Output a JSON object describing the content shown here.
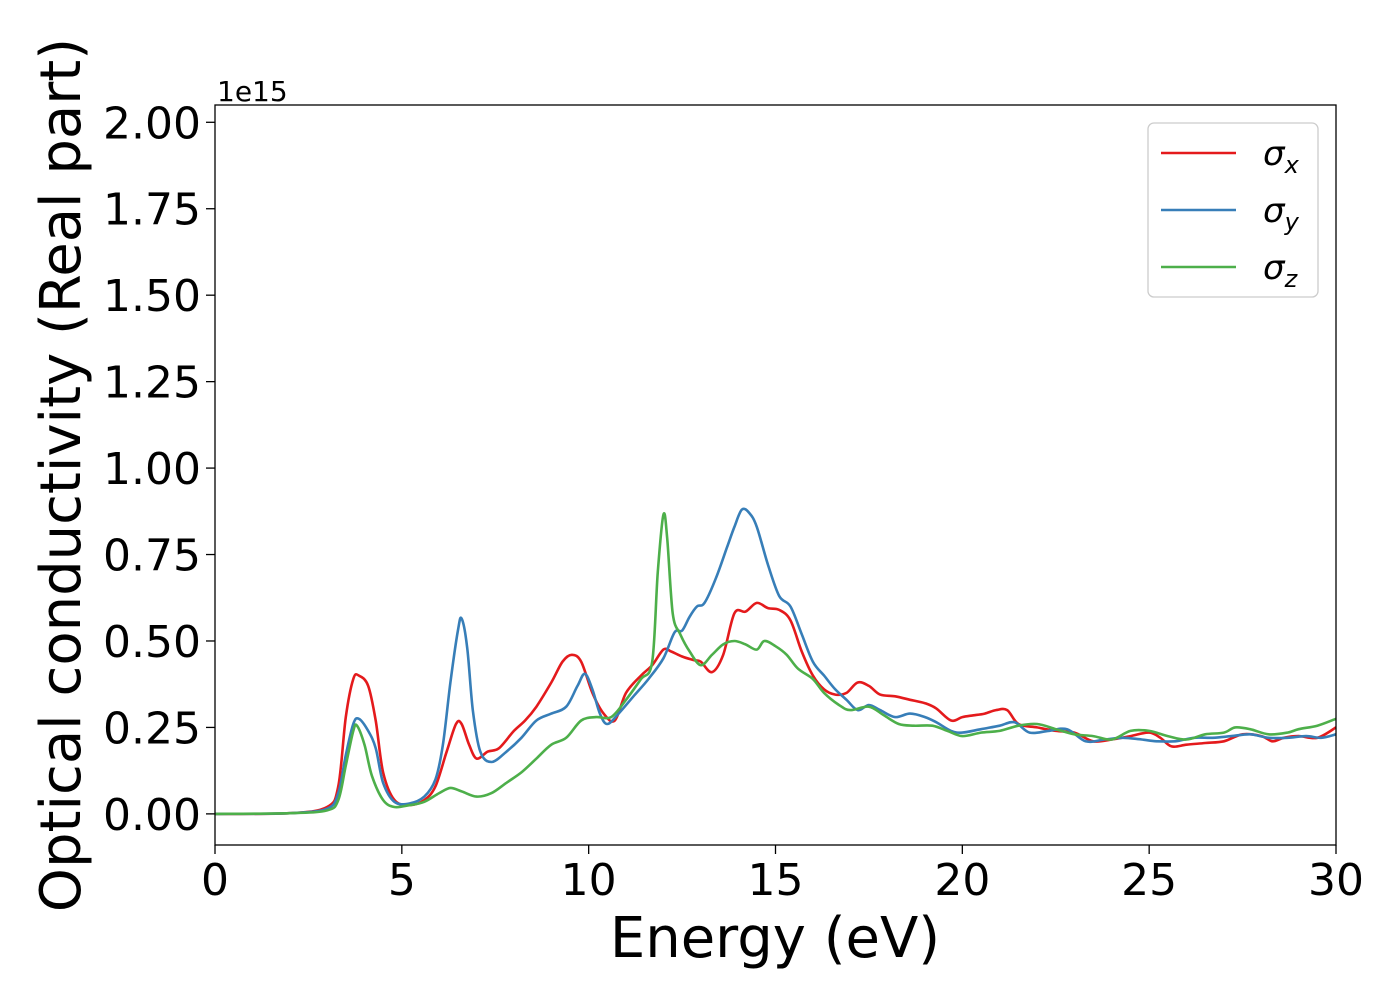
{
  "chart_data": {
    "type": "line",
    "xlabel": "Energy (eV)",
    "ylabel": "Optical conductivity (Real part)",
    "y_offset_label": "1e15",
    "xlim": [
      0,
      30
    ],
    "ylim": [
      -0.09,
      2.05
    ],
    "x_ticks": [
      0,
      5,
      10,
      15,
      20,
      25,
      30
    ],
    "x_tick_labels": [
      "0",
      "5",
      "10",
      "15",
      "20",
      "25",
      "30"
    ],
    "y_ticks": [
      0.0,
      0.25,
      0.5,
      0.75,
      1.0,
      1.25,
      1.5,
      1.75,
      2.0
    ],
    "y_tick_labels": [
      "0.00",
      "0.25",
      "0.50",
      "0.75",
      "1.00",
      "1.25",
      "1.50",
      "1.75",
      "2.00"
    ],
    "grid": false,
    "legend": {
      "position": "top-right",
      "entries": [
        {
          "label": "σx",
          "symbol": "σ",
          "subscript": "x",
          "color": "#e41a1c"
        },
        {
          "label": "σy",
          "symbol": "σ",
          "subscript": "y",
          "color": "#377eb8"
        },
        {
          "label": "σz",
          "symbol": "σ",
          "subscript": "z",
          "color": "#4daf4a"
        }
      ]
    },
    "series": [
      {
        "name": "σx",
        "color": "#e41a1c",
        "points": [
          [
            0,
            0.0
          ],
          [
            2,
            0.002
          ],
          [
            3,
            0.02
          ],
          [
            3.3,
            0.08
          ],
          [
            3.5,
            0.28
          ],
          [
            3.7,
            0.39
          ],
          [
            3.85,
            0.4
          ],
          [
            4.1,
            0.37
          ],
          [
            4.3,
            0.27
          ],
          [
            4.5,
            0.12
          ],
          [
            4.8,
            0.04
          ],
          [
            5.2,
            0.025
          ],
          [
            5.6,
            0.04
          ],
          [
            5.9,
            0.08
          ],
          [
            6.2,
            0.18
          ],
          [
            6.45,
            0.26
          ],
          [
            6.6,
            0.26
          ],
          [
            6.8,
            0.2
          ],
          [
            7.0,
            0.16
          ],
          [
            7.3,
            0.18
          ],
          [
            7.6,
            0.19
          ],
          [
            8.0,
            0.24
          ],
          [
            8.3,
            0.27
          ],
          [
            8.6,
            0.31
          ],
          [
            9.0,
            0.38
          ],
          [
            9.3,
            0.44
          ],
          [
            9.55,
            0.46
          ],
          [
            9.8,
            0.44
          ],
          [
            10.1,
            0.35
          ],
          [
            10.4,
            0.29
          ],
          [
            10.7,
            0.27
          ],
          [
            11.0,
            0.35
          ],
          [
            11.4,
            0.4
          ],
          [
            11.7,
            0.43
          ],
          [
            12.0,
            0.475
          ],
          [
            12.2,
            0.47
          ],
          [
            12.5,
            0.455
          ],
          [
            12.8,
            0.445
          ],
          [
            13.0,
            0.44
          ],
          [
            13.3,
            0.41
          ],
          [
            13.6,
            0.46
          ],
          [
            13.9,
            0.58
          ],
          [
            14.2,
            0.585
          ],
          [
            14.5,
            0.61
          ],
          [
            14.8,
            0.595
          ],
          [
            15.1,
            0.59
          ],
          [
            15.4,
            0.56
          ],
          [
            15.7,
            0.47
          ],
          [
            16.0,
            0.4
          ],
          [
            16.3,
            0.36
          ],
          [
            16.6,
            0.345
          ],
          [
            16.9,
            0.35
          ],
          [
            17.2,
            0.38
          ],
          [
            17.5,
            0.37
          ],
          [
            17.8,
            0.345
          ],
          [
            18.2,
            0.34
          ],
          [
            18.6,
            0.33
          ],
          [
            19.0,
            0.32
          ],
          [
            19.3,
            0.305
          ],
          [
            19.7,
            0.27
          ],
          [
            20.0,
            0.28
          ],
          [
            20.3,
            0.285
          ],
          [
            20.6,
            0.29
          ],
          [
            20.9,
            0.3
          ],
          [
            21.2,
            0.3
          ],
          [
            21.5,
            0.26
          ],
          [
            22.0,
            0.25
          ],
          [
            22.5,
            0.24
          ],
          [
            23.0,
            0.235
          ],
          [
            23.5,
            0.21
          ],
          [
            24.0,
            0.215
          ],
          [
            24.5,
            0.225
          ],
          [
            25.0,
            0.235
          ],
          [
            25.3,
            0.22
          ],
          [
            25.6,
            0.195
          ],
          [
            26.0,
            0.2
          ],
          [
            26.5,
            0.205
          ],
          [
            27.0,
            0.21
          ],
          [
            27.5,
            0.23
          ],
          [
            28.0,
            0.225
          ],
          [
            28.3,
            0.21
          ],
          [
            28.6,
            0.22
          ],
          [
            29.0,
            0.225
          ],
          [
            29.5,
            0.22
          ],
          [
            30.0,
            0.25
          ]
        ]
      },
      {
        "name": "σy",
        "color": "#377eb8",
        "points": [
          [
            0,
            0.0
          ],
          [
            2,
            0.002
          ],
          [
            3,
            0.015
          ],
          [
            3.3,
            0.06
          ],
          [
            3.5,
            0.17
          ],
          [
            3.7,
            0.26
          ],
          [
            3.85,
            0.275
          ],
          [
            4.1,
            0.24
          ],
          [
            4.3,
            0.19
          ],
          [
            4.5,
            0.09
          ],
          [
            4.8,
            0.035
          ],
          [
            5.2,
            0.03
          ],
          [
            5.6,
            0.05
          ],
          [
            5.9,
            0.1
          ],
          [
            6.1,
            0.2
          ],
          [
            6.3,
            0.38
          ],
          [
            6.5,
            0.53
          ],
          [
            6.6,
            0.565
          ],
          [
            6.75,
            0.48
          ],
          [
            6.9,
            0.3
          ],
          [
            7.1,
            0.18
          ],
          [
            7.4,
            0.15
          ],
          [
            7.8,
            0.18
          ],
          [
            8.2,
            0.22
          ],
          [
            8.6,
            0.27
          ],
          [
            9.0,
            0.29
          ],
          [
            9.4,
            0.31
          ],
          [
            9.7,
            0.37
          ],
          [
            9.9,
            0.405
          ],
          [
            10.1,
            0.36
          ],
          [
            10.3,
            0.29
          ],
          [
            10.5,
            0.26
          ],
          [
            10.8,
            0.29
          ],
          [
            11.2,
            0.34
          ],
          [
            11.6,
            0.39
          ],
          [
            12.0,
            0.45
          ],
          [
            12.3,
            0.525
          ],
          [
            12.5,
            0.53
          ],
          [
            12.7,
            0.57
          ],
          [
            12.9,
            0.6
          ],
          [
            13.1,
            0.61
          ],
          [
            13.4,
            0.68
          ],
          [
            13.7,
            0.77
          ],
          [
            13.9,
            0.83
          ],
          [
            14.1,
            0.88
          ],
          [
            14.3,
            0.87
          ],
          [
            14.5,
            0.83
          ],
          [
            14.8,
            0.72
          ],
          [
            15.1,
            0.63
          ],
          [
            15.4,
            0.6
          ],
          [
            15.7,
            0.52
          ],
          [
            16.0,
            0.44
          ],
          [
            16.3,
            0.4
          ],
          [
            16.6,
            0.36
          ],
          [
            16.9,
            0.33
          ],
          [
            17.2,
            0.3
          ],
          [
            17.5,
            0.315
          ],
          [
            17.8,
            0.3
          ],
          [
            18.2,
            0.28
          ],
          [
            18.6,
            0.29
          ],
          [
            19.0,
            0.28
          ],
          [
            19.3,
            0.265
          ],
          [
            19.7,
            0.24
          ],
          [
            20.0,
            0.235
          ],
          [
            20.5,
            0.245
          ],
          [
            21.0,
            0.255
          ],
          [
            21.4,
            0.265
          ],
          [
            21.8,
            0.235
          ],
          [
            22.3,
            0.24
          ],
          [
            22.8,
            0.245
          ],
          [
            23.3,
            0.21
          ],
          [
            23.8,
            0.215
          ],
          [
            24.3,
            0.22
          ],
          [
            24.8,
            0.215
          ],
          [
            25.2,
            0.21
          ],
          [
            25.7,
            0.21
          ],
          [
            26.2,
            0.22
          ],
          [
            26.7,
            0.22
          ],
          [
            27.2,
            0.225
          ],
          [
            27.7,
            0.23
          ],
          [
            28.2,
            0.22
          ],
          [
            28.7,
            0.22
          ],
          [
            29.2,
            0.225
          ],
          [
            29.6,
            0.22
          ],
          [
            30.0,
            0.23
          ]
        ]
      },
      {
        "name": "σz",
        "color": "#4daf4a",
        "points": [
          [
            0,
            0.0
          ],
          [
            2,
            0.002
          ],
          [
            3,
            0.01
          ],
          [
            3.3,
            0.04
          ],
          [
            3.5,
            0.14
          ],
          [
            3.7,
            0.24
          ],
          [
            3.8,
            0.255
          ],
          [
            4.0,
            0.2
          ],
          [
            4.2,
            0.11
          ],
          [
            4.5,
            0.04
          ],
          [
            4.8,
            0.02
          ],
          [
            5.2,
            0.025
          ],
          [
            5.6,
            0.035
          ],
          [
            6.0,
            0.06
          ],
          [
            6.3,
            0.075
          ],
          [
            6.6,
            0.065
          ],
          [
            7.0,
            0.05
          ],
          [
            7.4,
            0.06
          ],
          [
            7.8,
            0.09
          ],
          [
            8.2,
            0.12
          ],
          [
            8.6,
            0.16
          ],
          [
            9.0,
            0.2
          ],
          [
            9.4,
            0.22
          ],
          [
            9.8,
            0.27
          ],
          [
            10.2,
            0.28
          ],
          [
            10.6,
            0.28
          ],
          [
            11.0,
            0.33
          ],
          [
            11.4,
            0.39
          ],
          [
            11.7,
            0.44
          ],
          [
            11.85,
            0.7
          ],
          [
            12.0,
            0.865
          ],
          [
            12.1,
            0.8
          ],
          [
            12.25,
            0.58
          ],
          [
            12.45,
            0.52
          ],
          [
            12.7,
            0.47
          ],
          [
            13.0,
            0.43
          ],
          [
            13.3,
            0.46
          ],
          [
            13.6,
            0.49
          ],
          [
            13.9,
            0.5
          ],
          [
            14.2,
            0.49
          ],
          [
            14.5,
            0.475
          ],
          [
            14.7,
            0.5
          ],
          [
            15.0,
            0.485
          ],
          [
            15.3,
            0.46
          ],
          [
            15.6,
            0.42
          ],
          [
            16.0,
            0.39
          ],
          [
            16.3,
            0.35
          ],
          [
            16.7,
            0.315
          ],
          [
            17.0,
            0.3
          ],
          [
            17.5,
            0.31
          ],
          [
            17.9,
            0.285
          ],
          [
            18.3,
            0.26
          ],
          [
            18.7,
            0.255
          ],
          [
            19.2,
            0.255
          ],
          [
            19.6,
            0.24
          ],
          [
            20.0,
            0.225
          ],
          [
            20.5,
            0.235
          ],
          [
            21.0,
            0.24
          ],
          [
            21.5,
            0.255
          ],
          [
            22.0,
            0.26
          ],
          [
            22.5,
            0.245
          ],
          [
            23.0,
            0.23
          ],
          [
            23.5,
            0.225
          ],
          [
            24.0,
            0.215
          ],
          [
            24.5,
            0.24
          ],
          [
            25.0,
            0.24
          ],
          [
            25.5,
            0.225
          ],
          [
            26.0,
            0.215
          ],
          [
            26.5,
            0.23
          ],
          [
            27.0,
            0.235
          ],
          [
            27.3,
            0.25
          ],
          [
            27.7,
            0.245
          ],
          [
            28.2,
            0.23
          ],
          [
            28.7,
            0.235
          ],
          [
            29.0,
            0.245
          ],
          [
            29.5,
            0.255
          ],
          [
            30.0,
            0.275
          ]
        ]
      }
    ]
  }
}
